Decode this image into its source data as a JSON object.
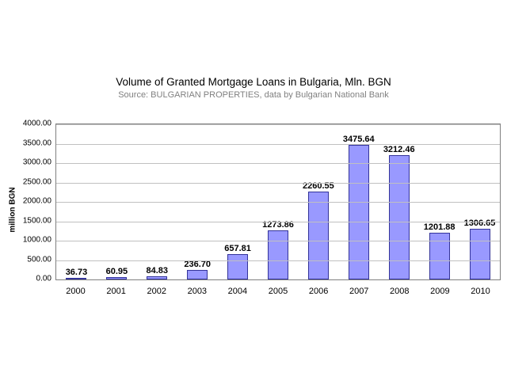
{
  "chart_data": {
    "type": "bar",
    "title": "Volume of Granted Mortgage Loans in Bulgaria, Mln. BGN",
    "subtitle": "Source: BULGARIAN PROPERTIES, data by Bulgarian National Bank",
    "ylabel": "million BGN",
    "xlabel": "",
    "categories": [
      "2000",
      "2001",
      "2002",
      "2003",
      "2004",
      "2005",
      "2006",
      "2007",
      "2008",
      "2009",
      "2010"
    ],
    "values": [
      36.73,
      60.95,
      84.83,
      236.7,
      657.81,
      1273.86,
      2260.55,
      3475.64,
      3212.46,
      1201.88,
      1306.65
    ],
    "value_labels": [
      "36.73",
      "60.95",
      "84.83",
      "236.70",
      "657.81",
      "1273.86",
      "2260.55",
      "3475.64",
      "3212.46",
      "1201.88",
      "1306.65"
    ],
    "ylim": [
      0,
      4000
    ],
    "ytick_step": 500,
    "ytick_labels": [
      "0.00",
      "500.00",
      "1000.00",
      "1500.00",
      "2000.00",
      "2500.00",
      "3000.00",
      "3500.00",
      "4000.00"
    ],
    "grid": true,
    "legend_position": "none",
    "colors": {
      "bar_fill": "#9999ff",
      "bar_border": "#333399",
      "gridline": "#c0c0c0",
      "plot_border": "#808080",
      "subtitle_text": "#808080"
    }
  }
}
